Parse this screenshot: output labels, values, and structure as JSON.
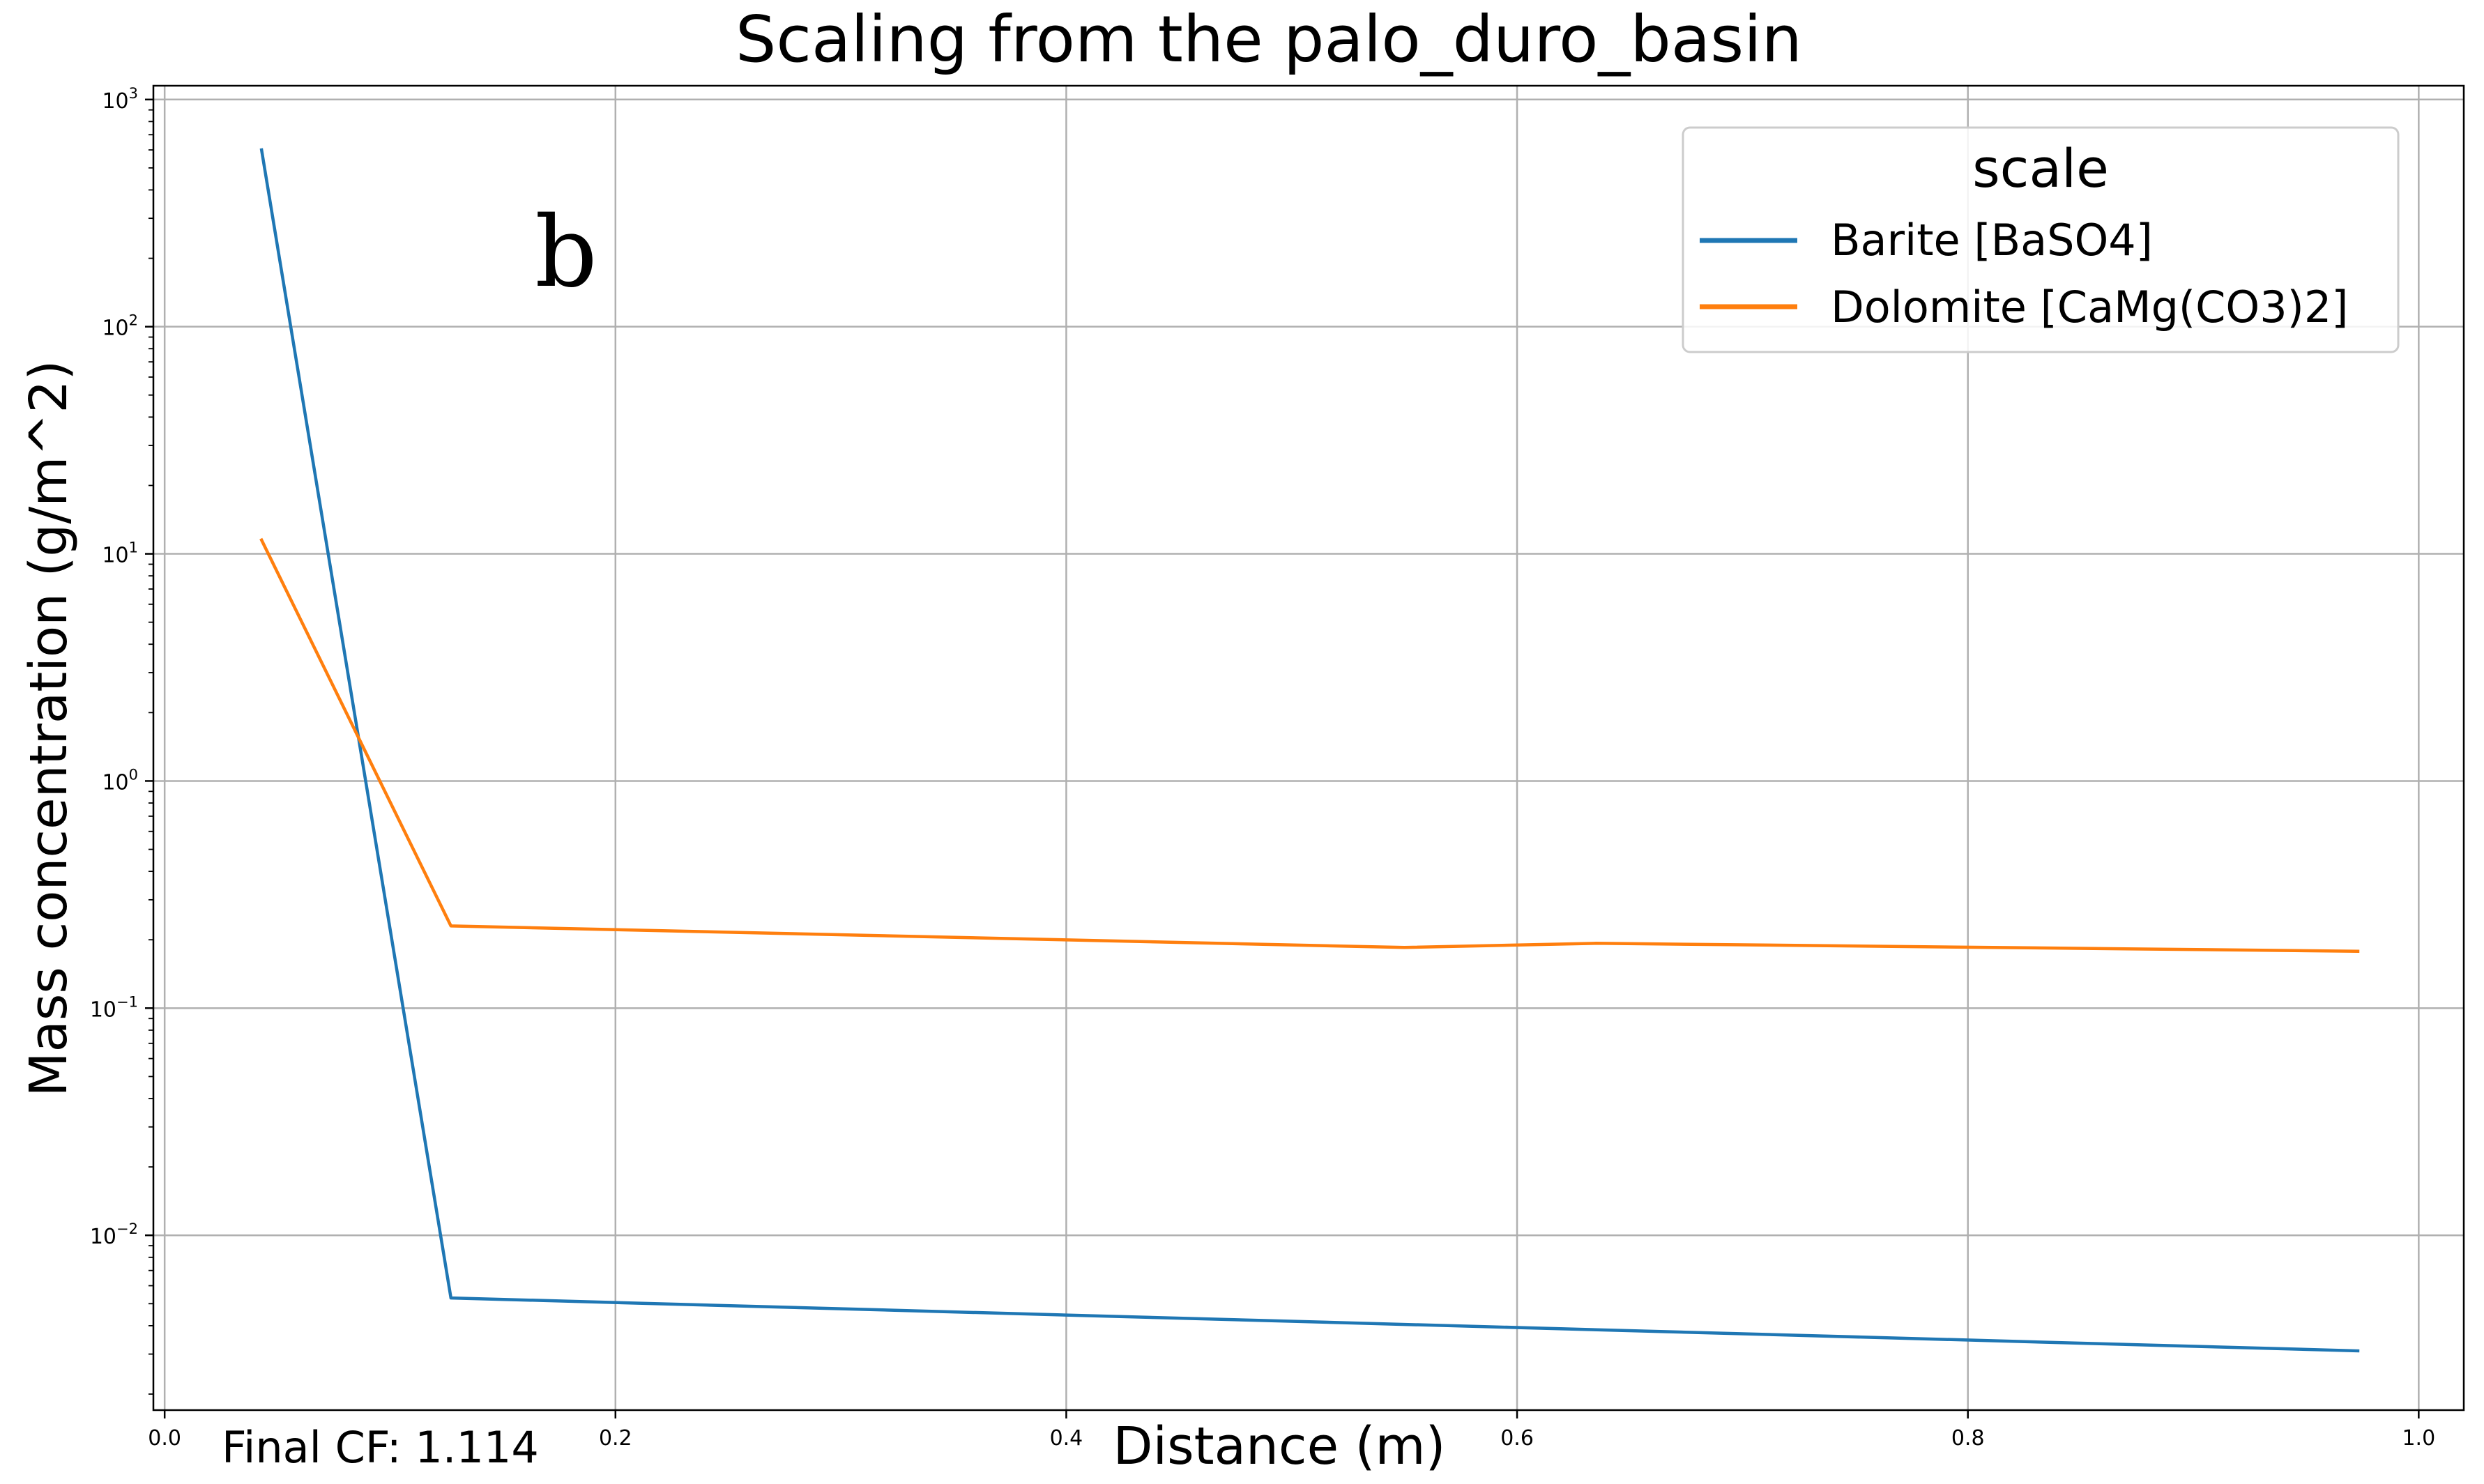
{
  "chart_data": {
    "type": "line",
    "title": "Scaling from the palo_duro_basin",
    "xlabel": "Distance (m)",
    "ylabel": "Mass concentration (g/m^2)",
    "xlim": [
      -0.005,
      1.02
    ],
    "ylim": [
      0.0017,
      1150
    ],
    "yscale": "log",
    "grid": true,
    "x_ticks": [
      0.0,
      0.2,
      0.4,
      0.6,
      0.8,
      1.0
    ],
    "x_tick_labels": [
      "0.0",
      "0.2",
      "0.4",
      "0.6",
      "0.8",
      "1.0"
    ],
    "y_ticks": [
      0.01,
      0.1,
      1,
      10,
      100,
      1000
    ],
    "y_tick_labels": [
      {
        "base": "10",
        "exp": "−2"
      },
      {
        "base": "10",
        "exp": "−1"
      },
      {
        "base": "10",
        "exp": "0"
      },
      {
        "base": "10",
        "exp": "1"
      },
      {
        "base": "10",
        "exp": "2"
      },
      {
        "base": "10",
        "exp": "3"
      }
    ],
    "legend": {
      "title": "scale",
      "position": "top-right"
    },
    "series": [
      {
        "name": "Barite [BaSO4]",
        "color": "#1f77b4",
        "x": [
          0.043,
          0.127,
          0.973
        ],
        "y": [
          600,
          0.0053,
          0.0031
        ]
      },
      {
        "name": "Dolomite [CaMg(CO3)2]",
        "color": "#ff7f0e",
        "x": [
          0.043,
          0.127,
          0.55,
          0.635,
          0.973
        ],
        "y": [
          11.5,
          0.23,
          0.185,
          0.193,
          0.178
        ]
      }
    ],
    "annotations": {
      "panel_letter": "b",
      "footer_note": "Final CF: 1.114"
    }
  }
}
